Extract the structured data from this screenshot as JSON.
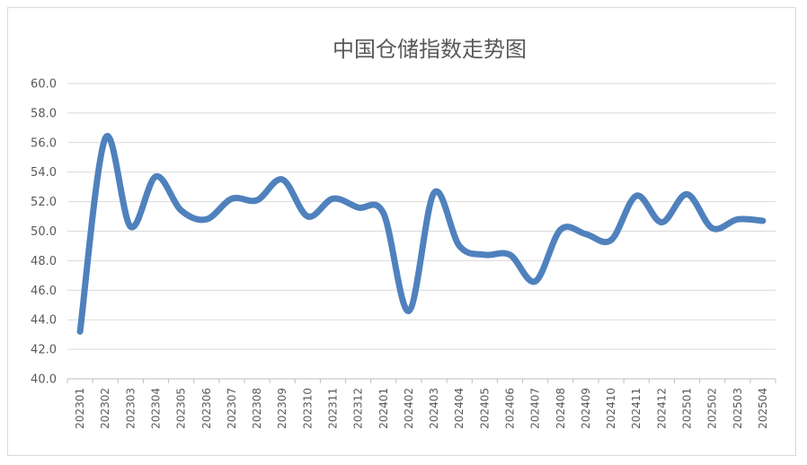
{
  "chart_data": {
    "type": "line",
    "title": "中国仓储指数走势图",
    "xlabel": "",
    "ylabel": "",
    "ylim": [
      40,
      60
    ],
    "yticks": [
      "40.0",
      "42.0",
      "44.0",
      "46.0",
      "48.0",
      "50.0",
      "52.0",
      "54.0",
      "56.0",
      "58.0",
      "60.0"
    ],
    "categories": [
      "202301",
      "202302",
      "202303",
      "202304",
      "202305",
      "202306",
      "202307",
      "202308",
      "202309",
      "202310",
      "202311",
      "202312",
      "202401",
      "202402",
      "202403",
      "202404",
      "202405",
      "202406",
      "202407",
      "202408",
      "202409",
      "202410",
      "202411",
      "202412",
      "202501",
      "202502",
      "202503",
      "202504"
    ],
    "series": [
      {
        "values": [
          43.2,
          56.3,
          50.3,
          53.7,
          51.4,
          50.8,
          52.2,
          52.1,
          53.5,
          51.0,
          52.2,
          51.6,
          51.2,
          44.6,
          52.6,
          49.0,
          48.4,
          48.4,
          46.6,
          50.1,
          49.8,
          49.4,
          52.4,
          50.6,
          52.5,
          50.2,
          50.8,
          50.7
        ],
        "color": "#4f81bd"
      }
    ],
    "grid": true,
    "legend": "none"
  }
}
